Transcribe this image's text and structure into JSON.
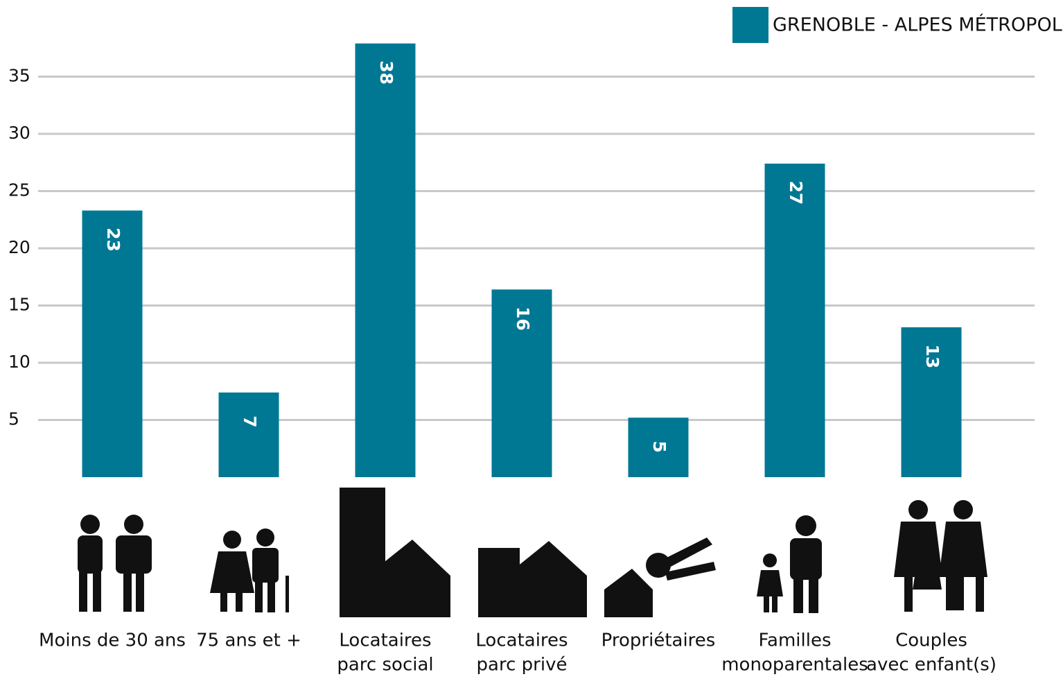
{
  "chart_data": {
    "type": "bar",
    "legend": "GRENOBLE - ALPES MÉTROPOLE",
    "color": "#007894",
    "categories": [
      [
        "Moins de 30 ans"
      ],
      [
        "75 ans et +"
      ],
      [
        "Locataires",
        "parc social"
      ],
      [
        "Locataires",
        "parc privé"
      ],
      [
        "Propriétaires"
      ],
      [
        "Familles",
        "monoparentales"
      ],
      [
        "Couples",
        "avec enfant(s)"
      ]
    ],
    "values": [
      23.3,
      7.4,
      37.9,
      16.4,
      5.2,
      27.4,
      13.1
    ],
    "value_labels": [
      "23",
      "7",
      "38",
      "16",
      "5",
      "27",
      "13"
    ],
    "ylim": [
      0,
      40
    ],
    "yticks": [
      5,
      10,
      15,
      20,
      25,
      30,
      35
    ],
    "grid": true
  }
}
